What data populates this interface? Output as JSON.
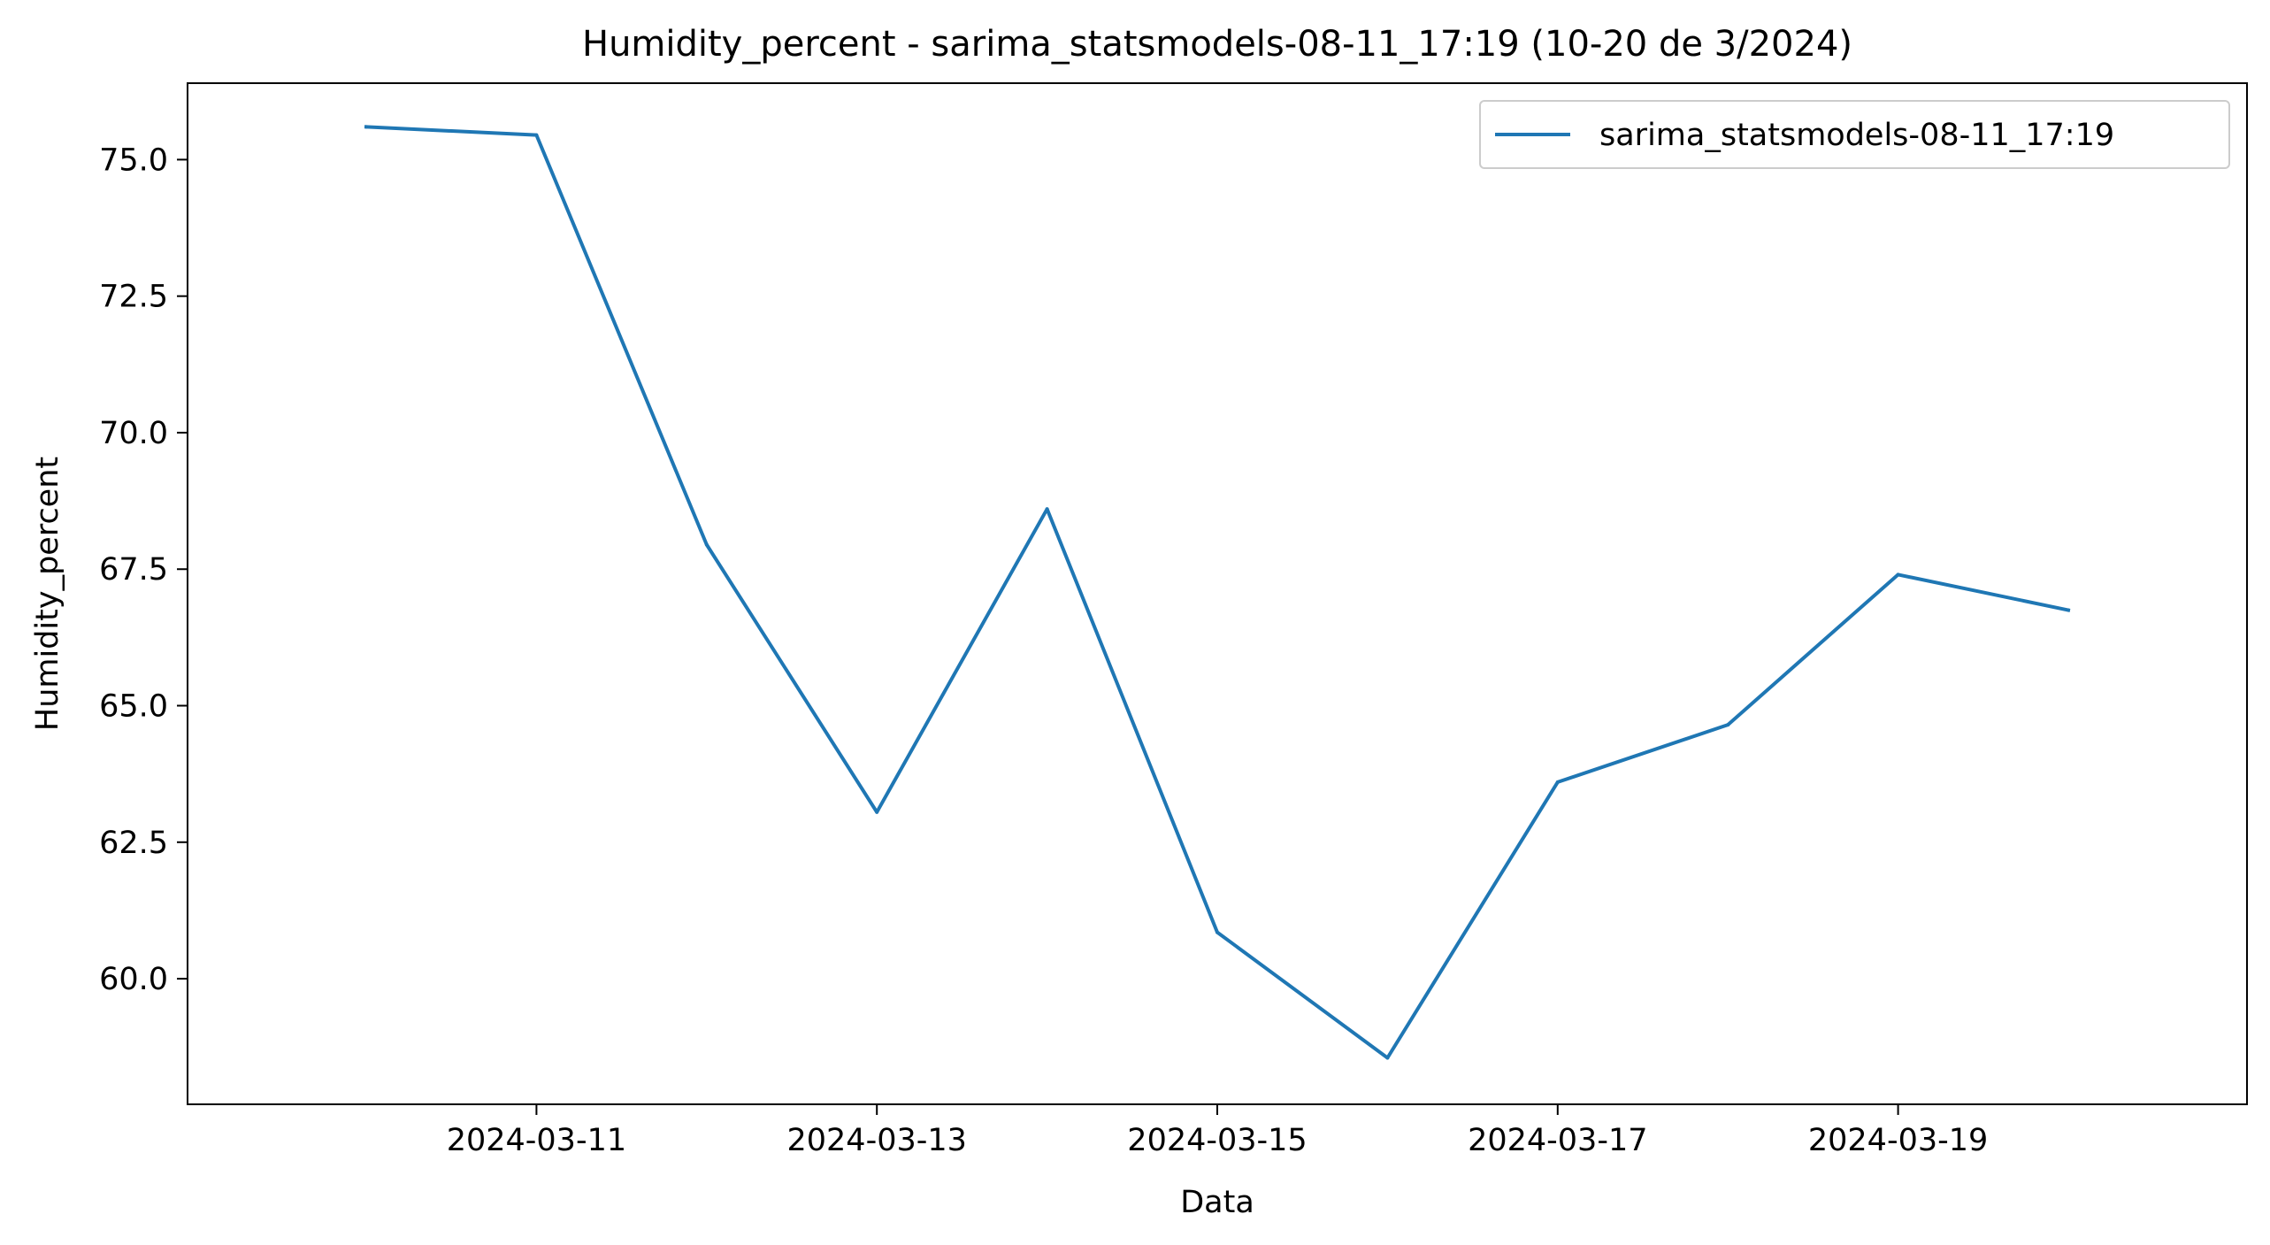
{
  "chart_data": {
    "type": "line",
    "title": "Humidity_percent - sarima_statsmodels-08-11_17:19 (10-20 de 3/2024)",
    "xlabel": "Data",
    "ylabel": "Humidity_percent",
    "x_tick_labels": [
      "2024-03-11",
      "2024-03-13",
      "2024-03-15",
      "2024-03-17",
      "2024-03-19"
    ],
    "y_tick_labels": [
      "60.0",
      "62.5",
      "65.0",
      "67.5",
      "70.0",
      "72.5",
      "75.0"
    ],
    "xlim": [
      "2024-03-09",
      "2024-03-21"
    ],
    "ylim": [
      57.7,
      76.4
    ],
    "grid": false,
    "legend_position": "top-right",
    "series": [
      {
        "name": "sarima_statsmodels-08-11_17:19",
        "color": "#1f77b4",
        "x": [
          "2024-03-10",
          "2024-03-11",
          "2024-03-12",
          "2024-03-13",
          "2024-03-14",
          "2024-03-15",
          "2024-03-16",
          "2024-03-17",
          "2024-03-18",
          "2024-03-19",
          "2024-03-20"
        ],
        "y": [
          75.6,
          75.45,
          67.95,
          63.05,
          68.6,
          60.85,
          58.55,
          63.6,
          64.65,
          67.4,
          66.75
        ]
      }
    ]
  }
}
